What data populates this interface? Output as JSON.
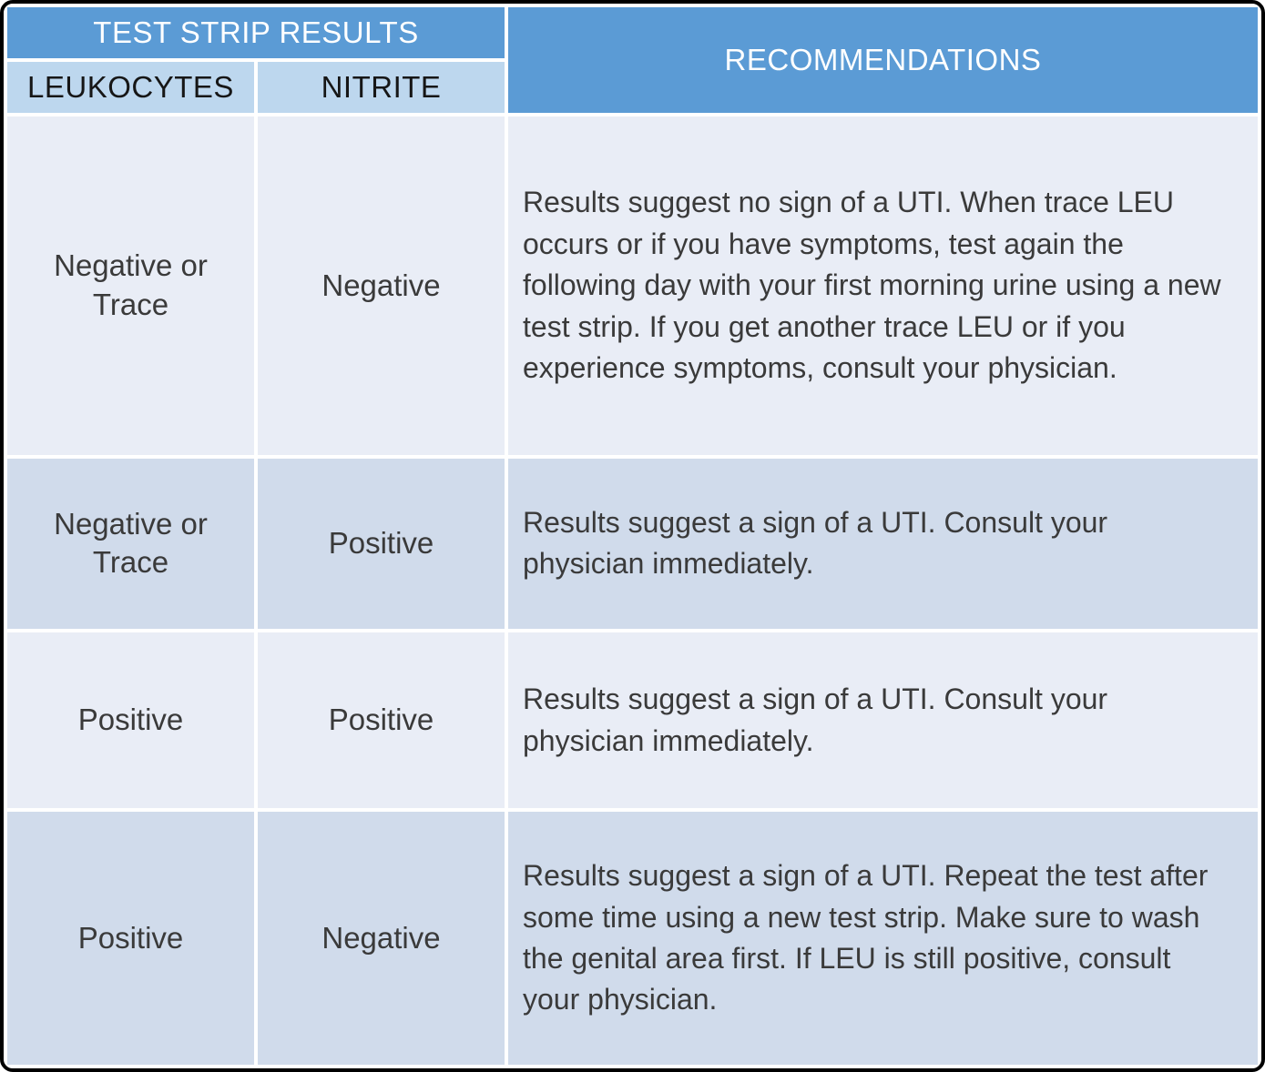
{
  "table": {
    "header": {
      "test_strip_results": "TEST STRIP RESULTS",
      "recommendations": "RECOMMENDATIONS",
      "leukocytes": "LEUKOCYTES",
      "nitrite": "NITRITE"
    },
    "rows": [
      {
        "leukocytes": "Negative or Trace",
        "nitrite": "Negative",
        "recommendation": "Results suggest no sign of a UTI. When trace LEU occurs or if you have symptoms, test again the following day with your first morning urine using a new test strip. If you get another trace LEU or if you experience symptoms, consult your physician."
      },
      {
        "leukocytes": "Negative or Trace",
        "nitrite": "Positive",
        "recommendation": "Results suggest a sign of a UTI. Consult your physician immediately."
      },
      {
        "leukocytes": "Positive",
        "nitrite": "Positive",
        "recommendation": "Results suggest a sign of a UTI. Consult your physician immediately."
      },
      {
        "leukocytes": "Positive",
        "nitrite": "Negative",
        "recommendation": "Results suggest a sign of a UTI. Repeat the test after some time using a new test strip. Make sure to wash the genital area first. If LEU is still positive, consult your physician."
      }
    ],
    "colors": {
      "header_blue": "#5b9bd5",
      "subheader_blue": "#bdd7ee",
      "row_light": "#e9edf6",
      "row_dark": "#d0dbeb",
      "header_text": "#ffffff",
      "body_text": "#3a3a3a",
      "outer_border": "#000000",
      "cell_gap": "#ffffff"
    }
  }
}
